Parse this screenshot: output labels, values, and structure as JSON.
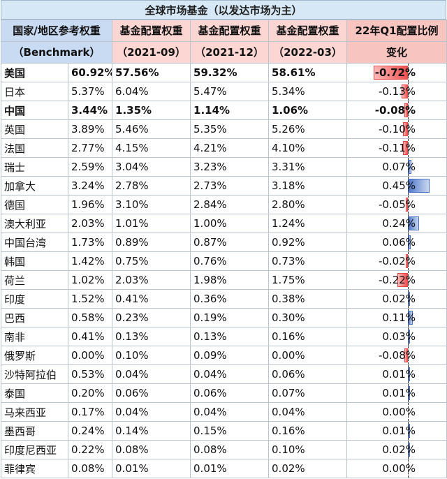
{
  "title": "全球市场基金（以发达市场为主）",
  "headers": [
    [
      "国家/地区参考权重",
      "（Benchmark）"
    ],
    [
      "基金配置权重",
      "（2021-09）"
    ],
    [
      "基金配置权重",
      "（2021-12）"
    ],
    [
      "基金配置权重",
      "（2022-03）"
    ],
    [
      "22年Q1配置比例",
      "变化"
    ]
  ],
  "rows": [
    {
      "country": "美国",
      "bench": "60.92%",
      "w1": "57.56%",
      "w2": "59.32%",
      "w3": "58.61%",
      "chg": "-0.72%",
      "chg_value": -0.72,
      "bold": true
    },
    {
      "country": "日本",
      "bench": "5.37%",
      "w1": "6.04%",
      "w2": "5.47%",
      "w3": "5.34%",
      "chg": "-0.13%",
      "chg_value": -0.13,
      "bold": false
    },
    {
      "country": "中国",
      "bench": "3.44%",
      "w1": "1.35%",
      "w2": "1.14%",
      "w3": "1.06%",
      "chg": "-0.08%",
      "chg_value": -0.08,
      "bold": true
    },
    {
      "country": "英国",
      "bench": "3.89%",
      "w1": "5.46%",
      "w2": "5.35%",
      "w3": "5.26%",
      "chg": "-0.10%",
      "chg_value": -0.1,
      "bold": false
    },
    {
      "country": "法国",
      "bench": "2.77%",
      "w1": "4.15%",
      "w2": "4.21%",
      "w3": "4.10%",
      "chg": "-0.11%",
      "chg_value": -0.11,
      "bold": false
    },
    {
      "country": "瑞士",
      "bench": "2.59%",
      "w1": "3.04%",
      "w2": "3.23%",
      "w3": "3.31%",
      "chg": "0.07%",
      "chg_value": 0.07,
      "bold": false
    },
    {
      "country": "加拿大",
      "bench": "3.24%",
      "w1": "2.78%",
      "w2": "2.73%",
      "w3": "3.18%",
      "chg": "0.45%",
      "chg_value": 0.45,
      "bold": false
    },
    {
      "country": "德国",
      "bench": "1.96%",
      "w1": "3.10%",
      "w2": "2.84%",
      "w3": "2.80%",
      "chg": "-0.05%",
      "chg_value": -0.05,
      "bold": false
    },
    {
      "country": "澳大利亚",
      "bench": "2.03%",
      "w1": "1.01%",
      "w2": "1.00%",
      "w3": "1.24%",
      "chg": "0.24%",
      "chg_value": 0.24,
      "bold": false
    },
    {
      "country": "中国台湾",
      "bench": "1.73%",
      "w1": "0.89%",
      "w2": "0.87%",
      "w3": "0.92%",
      "chg": "0.06%",
      "chg_value": 0.06,
      "bold": false
    },
    {
      "country": "韩国",
      "bench": "1.42%",
      "w1": "0.75%",
      "w2": "0.76%",
      "w3": "0.73%",
      "chg": "-0.02%",
      "chg_value": -0.02,
      "bold": false
    },
    {
      "country": "荷兰",
      "bench": "1.02%",
      "w1": "2.03%",
      "w2": "1.98%",
      "w3": "1.75%",
      "chg": "-0.22%",
      "chg_value": -0.22,
      "bold": false
    },
    {
      "country": "印度",
      "bench": "1.52%",
      "w1": "0.41%",
      "w2": "0.36%",
      "w3": "0.38%",
      "chg": "0.02%",
      "chg_value": 0.02,
      "bold": false
    },
    {
      "country": "巴西",
      "bench": "0.58%",
      "w1": "0.23%",
      "w2": "0.19%",
      "w3": "0.30%",
      "chg": "0.11%",
      "chg_value": 0.11,
      "bold": false
    },
    {
      "country": "南非",
      "bench": "0.41%",
      "w1": "0.13%",
      "w2": "0.13%",
      "w3": "0.16%",
      "chg": "0.03%",
      "chg_value": 0.03,
      "bold": false
    },
    {
      "country": "俄罗斯",
      "bench": "0.00%",
      "w1": "0.10%",
      "w2": "0.09%",
      "w3": "0.00%",
      "chg": "-0.08%",
      "chg_value": -0.08,
      "bold": false
    },
    {
      "country": "沙特阿拉伯",
      "bench": "0.53%",
      "w1": "0.04%",
      "w2": "0.04%",
      "w3": "0.06%",
      "chg": "0.01%",
      "chg_value": 0.01,
      "bold": false
    },
    {
      "country": "泰国",
      "bench": "0.20%",
      "w1": "0.06%",
      "w2": "0.06%",
      "w3": "0.07%",
      "chg": "0.01%",
      "chg_value": 0.01,
      "bold": false
    },
    {
      "country": "马来西亚",
      "bench": "0.17%",
      "w1": "0.04%",
      "w2": "0.04%",
      "w3": "0.04%",
      "chg": "0.00%",
      "chg_value": 0.0,
      "bold": false
    },
    {
      "country": "墨西哥",
      "bench": "0.24%",
      "w1": "0.14%",
      "w2": "0.15%",
      "w3": "0.16%",
      "chg": "0.01%",
      "chg_value": 0.01,
      "bold": false
    },
    {
      "country": "印度尼西亚",
      "bench": "0.22%",
      "w1": "0.08%",
      "w2": "0.08%",
      "w3": "0.10%",
      "chg": "0.02%",
      "chg_value": 0.02,
      "bold": false
    },
    {
      "country": "菲律宾",
      "bench": "0.08%",
      "w1": "0.01%",
      "w2": "0.01%",
      "w3": "0.02%",
      "chg": "0.00%",
      "chg_value": 0.0,
      "bold": false
    }
  ],
  "colors": {
    "title_bg": "#d6e8f5",
    "bench_header_bg": "#c9daf3",
    "weight_header_bg": "#fbd6d3",
    "change_header_text": "#b40000",
    "negative_bar": "#f05050",
    "positive_bar": "#4f77c9"
  }
}
